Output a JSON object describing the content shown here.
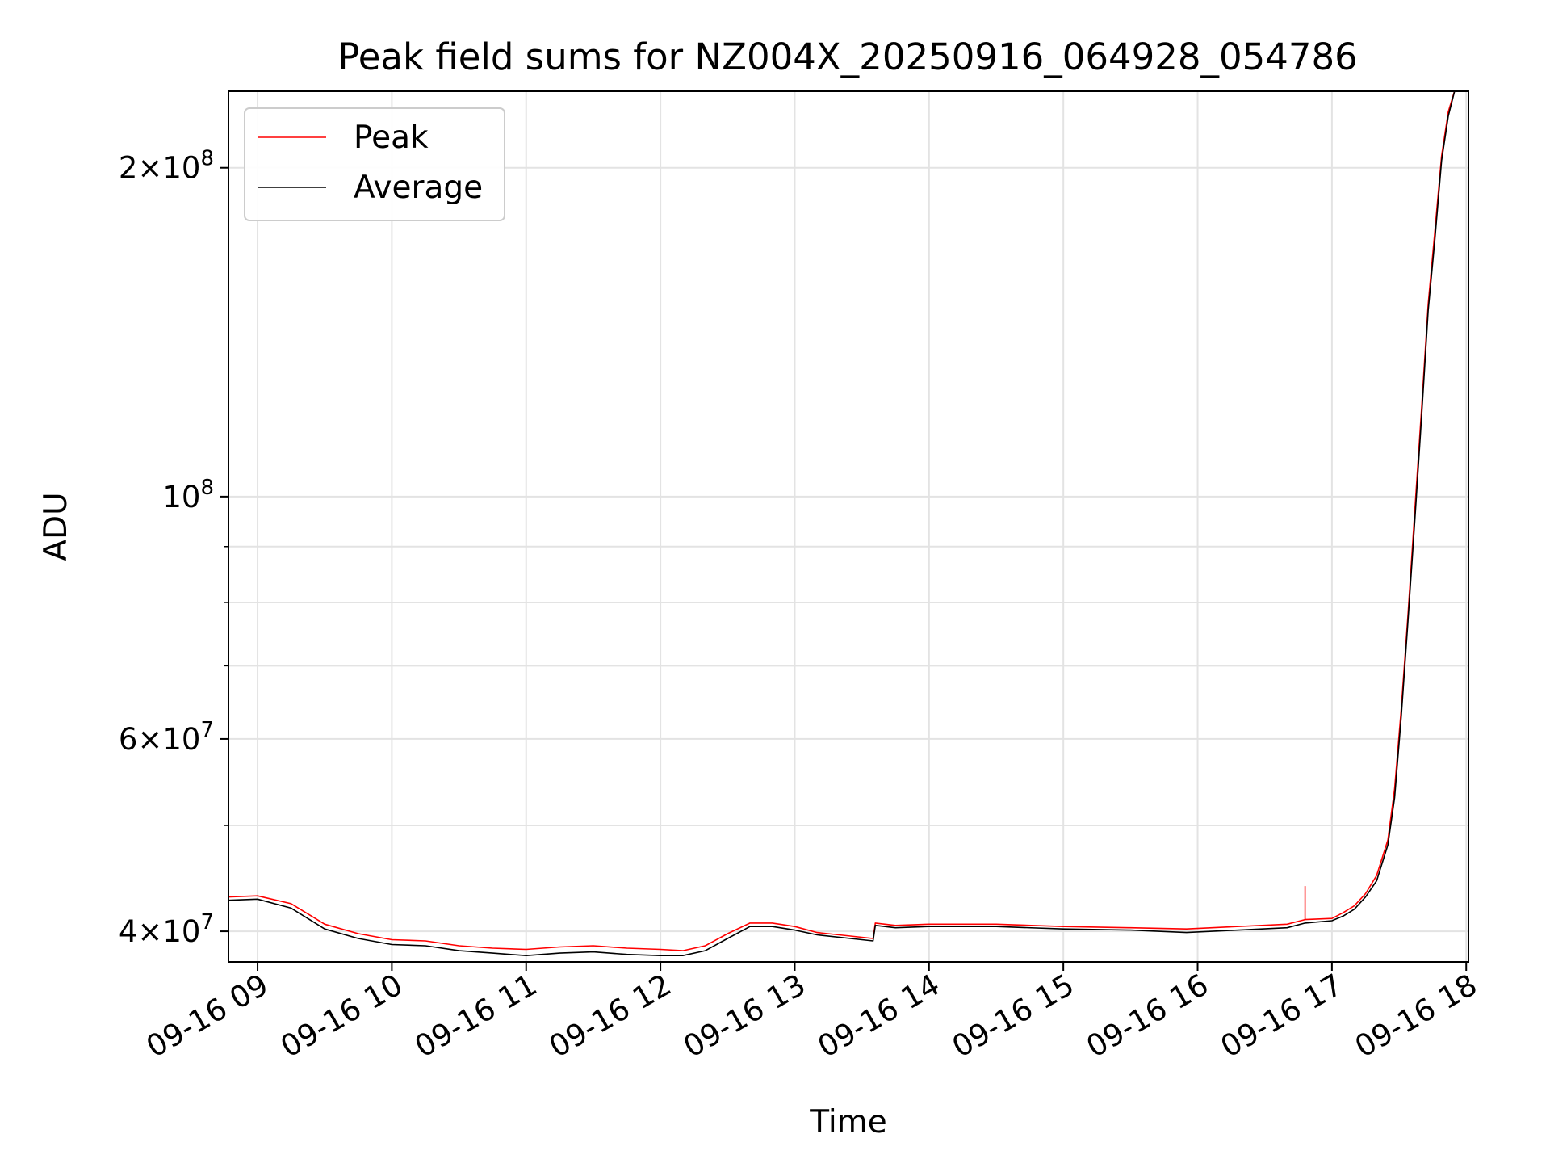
{
  "chart_data": {
    "type": "line",
    "title": "Peak field sums for NZ004X_20250916_064928_054786",
    "xlabel": "Time",
    "ylabel": "ADU",
    "y_scale": "log",
    "ylim": [
      37500000,
      235000000
    ],
    "xlim": [
      "09-16 08:47",
      "09-16 18:01"
    ],
    "grid": true,
    "legend": {
      "position": "top-left",
      "entries": [
        "Peak",
        "Average"
      ]
    },
    "x_ticks": [
      "09-16 09",
      "09-16 10",
      "09-16 11",
      "09-16 12",
      "09-16 13",
      "09-16 14",
      "09-16 15",
      "09-16 16",
      "09-16 17",
      "09-16 18"
    ],
    "y_major_ticks": [
      {
        "value": 40000000,
        "mantissa": "4",
        "exponent": "7"
      },
      {
        "value": 60000000,
        "mantissa": "6",
        "exponent": "7"
      },
      {
        "value": 100000000,
        "mantissa": "",
        "exponent": "8"
      },
      {
        "value": 200000000,
        "mantissa": "2",
        "exponent": "8"
      }
    ],
    "y_minor_ticks": [
      50000000,
      70000000,
      80000000,
      90000000
    ],
    "x": [
      "09-16 08:47",
      "09-16 09:00",
      "09-16 09:15",
      "09-16 09:30",
      "09-16 09:45",
      "09-16 10:00",
      "09-16 10:15",
      "09-16 10:30",
      "09-16 10:45",
      "09-16 11:00",
      "09-16 11:15",
      "09-16 11:30",
      "09-16 11:45",
      "09-16 12:00",
      "09-16 12:10",
      "09-16 12:20",
      "09-16 12:30",
      "09-16 12:40",
      "09-16 12:50",
      "09-16 13:00",
      "09-16 13:10",
      "09-16 13:35",
      "09-16 13:36",
      "09-16 13:45",
      "09-16 14:00",
      "09-16 14:30",
      "09-16 15:00",
      "09-16 15:30",
      "09-16 15:55",
      "09-16 16:40",
      "09-16 16:48",
      "09-16 17:00",
      "09-16 17:05",
      "09-16 17:10",
      "09-16 17:15",
      "09-16 17:20",
      "09-16 17:25",
      "09-16 17:28",
      "09-16 17:31",
      "09-16 17:34",
      "09-16 17:37",
      "09-16 17:40",
      "09-16 17:43",
      "09-16 17:46",
      "09-16 17:49",
      "09-16 17:52",
      "09-16 17:55",
      "09-16 17:57"
    ],
    "series": [
      {
        "name": "Peak",
        "color": "#ff0000",
        "values": [
          43000000,
          43100000,
          42400000,
          40600000,
          39800000,
          39300000,
          39200000,
          38800000,
          38600000,
          38500000,
          38700000,
          38800000,
          38600000,
          38500000,
          38400000,
          38800000,
          39800000,
          40700000,
          40700000,
          40400000,
          39900000,
          39400000,
          40700000,
          40500000,
          40600000,
          40600000,
          40400000,
          40300000,
          40200000,
          40600000,
          41000000,
          41100000,
          41600000,
          42200000,
          43300000,
          45000000,
          48500000,
          54000000,
          64000000,
          78000000,
          97000000,
          120000000,
          150000000,
          175000000,
          205000000,
          225000000,
          236000000,
          236000000
        ],
        "events": [
          {
            "x": "09-16 16:48",
            "value": 44000000
          }
        ]
      },
      {
        "name": "Average",
        "color": "#000000",
        "values": [
          42700000,
          42800000,
          42000000,
          40200000,
          39400000,
          38900000,
          38800000,
          38400000,
          38200000,
          38000000,
          38200000,
          38300000,
          38100000,
          38000000,
          38000000,
          38400000,
          39400000,
          40400000,
          40400000,
          40100000,
          39700000,
          39200000,
          40500000,
          40300000,
          40400000,
          40400000,
          40200000,
          40100000,
          39900000,
          40300000,
          40700000,
          40900000,
          41300000,
          41900000,
          43000000,
          44500000,
          48000000,
          53000000,
          63000000,
          77000000,
          95000000,
          118000000,
          148000000,
          172000000,
          203000000,
          223000000,
          236000000,
          236000000
        ]
      }
    ]
  }
}
